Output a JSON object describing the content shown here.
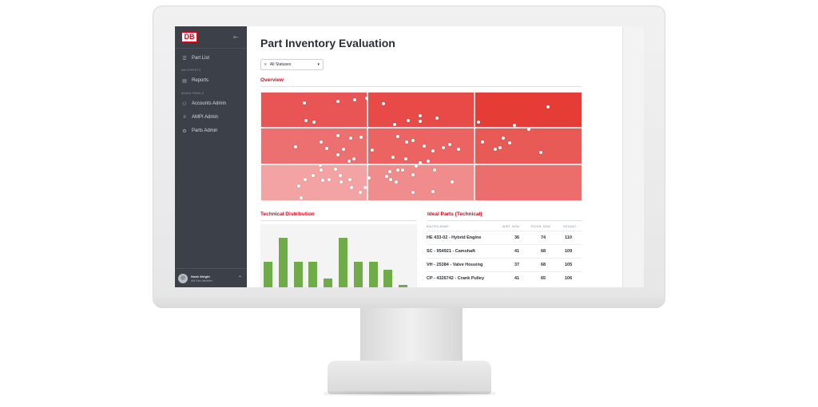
{
  "sidebar": {
    "logo": "DB",
    "items": [
      {
        "label": "Part List",
        "icon": "list-icon"
      },
      {
        "label": "Reports",
        "icon": "report-icon"
      },
      {
        "label": "Accounts Admin",
        "icon": "users-icon"
      },
      {
        "label": "AMPI Admin",
        "icon": "database-icon"
      },
      {
        "label": "Parts Admin",
        "icon": "gear-icon"
      }
    ],
    "sections": [
      "AM EXPERTS",
      "ADMIN PANELS"
    ],
    "user": {
      "name": "Noah Wright",
      "role": "AM Part Identifier"
    }
  },
  "main": {
    "title": "Part Inventory Evaluation",
    "filter": {
      "label": "All Statuses"
    },
    "overview_title": "Overview",
    "technical_title": "Technical Distribution",
    "ideal_title": "Ideal Parts (Technical)"
  },
  "colors": {
    "brand_red": "#ec0016",
    "sidebar_bg": "#3c4048",
    "bar_green": "#6fab48",
    "matrix": [
      "#e95555",
      "#e84a48",
      "#e53c36",
      "#ed7070",
      "#ec6462",
      "#e75a56",
      "#f3a3a3",
      "#f08d8c",
      "#ec6e6c"
    ]
  },
  "bars": {
    "values": [
      52,
      100,
      52,
      52,
      17,
      100,
      52,
      52,
      36,
      5
    ]
  },
  "ideal_table": {
    "headers": [
      "BAUTEILNAME",
      "WIRT. BEW.",
      "TECHN. BEW.",
      "GESAMT"
    ],
    "rows": [
      {
        "name": "HE 433-02 - Hybrid Engine",
        "wirt": "36",
        "techn": "74",
        "gesamt": "110"
      },
      {
        "name": "SC - 954921 - Camshaft",
        "wirt": "41",
        "techn": "68",
        "gesamt": "109"
      },
      {
        "name": "VH - 25384 - Valve Housing",
        "wirt": "37",
        "techn": "68",
        "gesamt": "105"
      },
      {
        "name": "CP - 4326742 - Crank Pulley",
        "wirt": "41",
        "techn": "65",
        "gesamt": "106"
      }
    ]
  }
}
